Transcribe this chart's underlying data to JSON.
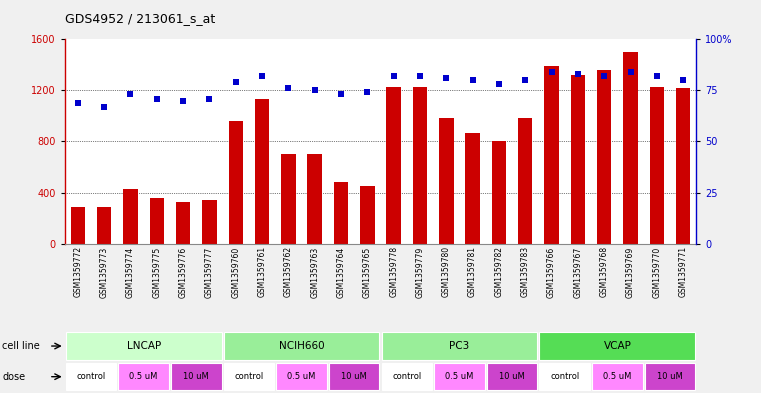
{
  "title": "GDS4952 / 213061_s_at",
  "samples": [
    "GSM1359772",
    "GSM1359773",
    "GSM1359774",
    "GSM1359775",
    "GSM1359776",
    "GSM1359777",
    "GSM1359760",
    "GSM1359761",
    "GSM1359762",
    "GSM1359763",
    "GSM1359764",
    "GSM1359765",
    "GSM1359778",
    "GSM1359779",
    "GSM1359780",
    "GSM1359781",
    "GSM1359782",
    "GSM1359783",
    "GSM1359766",
    "GSM1359767",
    "GSM1359768",
    "GSM1359769",
    "GSM1359770",
    "GSM1359771"
  ],
  "counts": [
    290,
    290,
    430,
    355,
    330,
    340,
    960,
    1130,
    700,
    700,
    480,
    455,
    1230,
    1230,
    980,
    870,
    800,
    980,
    1390,
    1320,
    1360,
    1500,
    1230,
    1220
  ],
  "percentiles": [
    69,
    67,
    73,
    71,
    70,
    71,
    79,
    82,
    76,
    75,
    73,
    74,
    82,
    82,
    81,
    80,
    78,
    80,
    84,
    83,
    82,
    84,
    82,
    80
  ],
  "bar_color": "#cc0000",
  "dot_color": "#0000cc",
  "cell_lines": [
    {
      "name": "LNCAP",
      "start": 0,
      "end": 6,
      "color": "#ccffcc"
    },
    {
      "name": "NCIH660",
      "start": 6,
      "end": 12,
      "color": "#99ee99"
    },
    {
      "name": "PC3",
      "start": 12,
      "end": 18,
      "color": "#99ee99"
    },
    {
      "name": "VCAP",
      "start": 18,
      "end": 24,
      "color": "#55dd55"
    }
  ],
  "doses": [
    {
      "label": "control",
      "start": 0,
      "end": 2,
      "color": "#ffffff"
    },
    {
      "label": "0.5 uM",
      "start": 2,
      "end": 4,
      "color": "#ff88ff"
    },
    {
      "label": "10 uM",
      "start": 4,
      "end": 6,
      "color": "#cc44cc"
    },
    {
      "label": "control",
      "start": 6,
      "end": 8,
      "color": "#ffffff"
    },
    {
      "label": "0.5 uM",
      "start": 8,
      "end": 10,
      "color": "#ff88ff"
    },
    {
      "label": "10 uM",
      "start": 10,
      "end": 12,
      "color": "#cc44cc"
    },
    {
      "label": "control",
      "start": 12,
      "end": 14,
      "color": "#ffffff"
    },
    {
      "label": "0.5 uM",
      "start": 14,
      "end": 16,
      "color": "#ff88ff"
    },
    {
      "label": "10 uM",
      "start": 16,
      "end": 18,
      "color": "#cc44cc"
    },
    {
      "label": "control",
      "start": 18,
      "end": 20,
      "color": "#ffffff"
    },
    {
      "label": "0.5 uM",
      "start": 20,
      "end": 22,
      "color": "#ff88ff"
    },
    {
      "label": "10 uM",
      "start": 22,
      "end": 24,
      "color": "#cc44cc"
    }
  ],
  "dose_colors": {
    "control": "#ffffff",
    "0.5 uM": "#ff88ff",
    "10 uM": "#cc44cc"
  },
  "ylim_left": [
    0,
    1600
  ],
  "ylim_right": [
    0,
    100
  ],
  "yticks_left": [
    0,
    400,
    800,
    1200,
    1600
  ],
  "yticks_right": [
    0,
    25,
    50,
    75,
    100
  ],
  "ytick_right_labels": [
    "0",
    "25",
    "50",
    "75",
    "100%"
  ],
  "background_color": "#f0f0f0",
  "plot_bg": "#ffffff",
  "grid_color": "#000000",
  "label_row_color": "#cccccc"
}
